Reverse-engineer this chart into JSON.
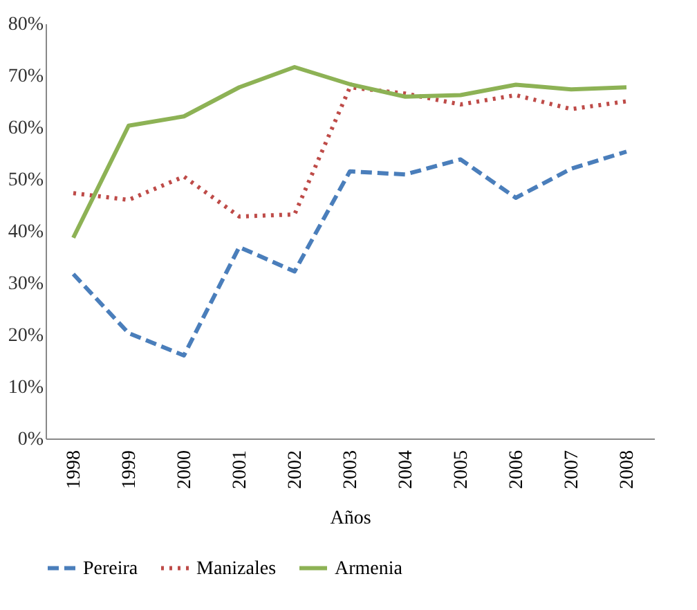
{
  "chart_data": {
    "type": "line",
    "xlabel": "Años",
    "categories": [
      "1998",
      "1999",
      "2000",
      "2001",
      "2002",
      "2003",
      "2004",
      "2005",
      "2006",
      "2007",
      "2008"
    ],
    "series": [
      {
        "name": "Pereira",
        "color": "#4a7ebb",
        "line_style": "dashed",
        "values": [
          31.7,
          20.3,
          16.0,
          36.9,
          32.2,
          51.5,
          50.9,
          53.8,
          46.4,
          52.0,
          55.3
        ]
      },
      {
        "name": "Manizales",
        "color": "#be4b48",
        "line_style": "dotted",
        "values": [
          47.3,
          46.0,
          50.5,
          42.8,
          43.2,
          67.7,
          66.5,
          64.4,
          66.2,
          63.5,
          65.0
        ]
      },
      {
        "name": "Armenia",
        "color": "#8db255",
        "line_style": "solid",
        "values": [
          38.7,
          60.3,
          62.1,
          67.7,
          71.6,
          68.3,
          65.9,
          66.2,
          68.2,
          67.3,
          67.7
        ]
      }
    ],
    "ylim": [
      0,
      80
    ],
    "yticks": [
      {
        "value": 0,
        "label": "0%"
      },
      {
        "value": 10,
        "label": "10%"
      },
      {
        "value": 20,
        "label": "20%"
      },
      {
        "value": 30,
        "label": "30%"
      },
      {
        "value": 40,
        "label": "40%"
      },
      {
        "value": 50,
        "label": "50%"
      },
      {
        "value": 60,
        "label": "60%"
      },
      {
        "value": 70,
        "label": "70%"
      },
      {
        "value": 80,
        "label": "80%"
      }
    ],
    "grid": false,
    "legend": "bottom",
    "marker": "none"
  }
}
